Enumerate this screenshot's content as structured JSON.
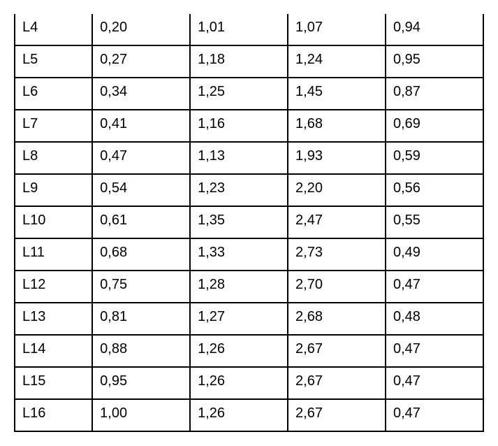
{
  "table": {
    "type": "table",
    "background_color": "#ffffff",
    "border_color": "#000000",
    "border_width": 2,
    "text_color": "#000000",
    "font_size": 20,
    "font_family": "Arial",
    "cell_align": "left",
    "rows": [
      [
        "L4",
        "0,20",
        "1,01",
        "1,07",
        "0,94"
      ],
      [
        "L5",
        "0,27",
        "1,18",
        "1,24",
        "0,95"
      ],
      [
        "L6",
        "0,34",
        "1,25",
        "1,45",
        "0,87"
      ],
      [
        "L7",
        "0,41",
        "1,16",
        "1,68",
        "0,69"
      ],
      [
        "L8",
        "0,47",
        "1,13",
        "1,93",
        "0,59"
      ],
      [
        "L9",
        "0,54",
        "1,23",
        "2,20",
        "0,56"
      ],
      [
        "L10",
        "0,61",
        "1,35",
        "2,47",
        "0,55"
      ],
      [
        "L11",
        "0,68",
        "1,33",
        "2,73",
        "0,49"
      ],
      [
        "L12",
        "0,75",
        "1,28",
        "2,70",
        "0,47"
      ],
      [
        "L13",
        "0,81",
        "1,27",
        "2,68",
        "0,48"
      ],
      [
        "L14",
        "0,88",
        "1,26",
        "2,67",
        "0,47"
      ],
      [
        "L15",
        "0,95",
        "1,26",
        "2,67",
        "0,47"
      ],
      [
        "L16",
        "1,00",
        "1,26",
        "2,67",
        "0,47"
      ]
    ]
  }
}
